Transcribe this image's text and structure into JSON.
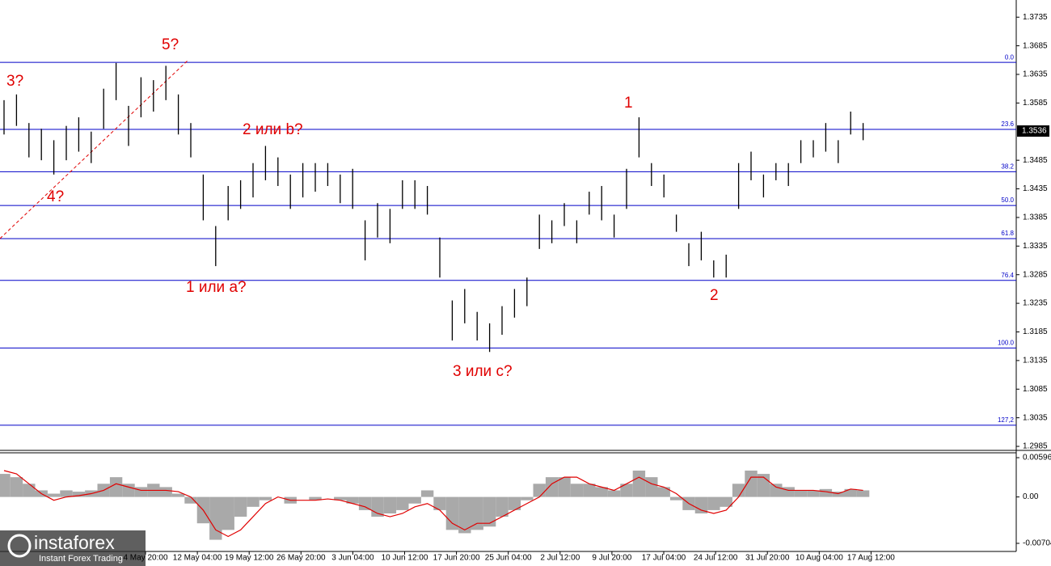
{
  "chart_data": [
    {
      "type": "hilo",
      "color": "#000000",
      "level_color": "#0000c8",
      "ylim": [
        1.2978,
        1.3765
      ],
      "yticks": [
        1.3735,
        1.3685,
        1.3635,
        1.3585,
        1.3485,
        1.3435,
        1.3385,
        1.3335,
        1.3285,
        1.3235,
        1.3185,
        1.3135,
        1.3085,
        1.3035,
        1.2985
      ],
      "current_price": 1.3536,
      "levels": [
        {
          "value": 1.3656,
          "label": "0.0"
        },
        {
          "value": 1.3539,
          "label": "23.6"
        },
        {
          "value": 1.3465,
          "label": "38.2"
        },
        {
          "value": 1.3406,
          "label": "50.0"
        },
        {
          "value": 1.3348,
          "label": "61.8"
        },
        {
          "value": 1.3275,
          "label": "76.4"
        },
        {
          "value": 1.3157,
          "label": "100.0"
        },
        {
          "value": 1.3022,
          "label": "127,2"
        }
      ],
      "high": [
        1.359,
        1.36,
        1.355,
        1.354,
        1.352,
        1.3545,
        1.356,
        1.3535,
        1.361,
        1.3655,
        1.358,
        1.363,
        1.3625,
        1.365,
        1.36,
        1.355,
        1.346,
        1.337,
        1.344,
        1.345,
        1.348,
        1.351,
        1.349,
        1.346,
        1.348,
        1.348,
        1.348,
        1.346,
        1.347,
        1.338,
        1.341,
        1.34,
        1.345,
        1.345,
        1.344,
        1.335,
        1.324,
        1.326,
        1.322,
        1.32,
        1.323,
        1.326,
        1.328,
        1.339,
        1.338,
        1.341,
        1.338,
        1.343,
        1.344,
        1.339,
        1.347,
        1.356,
        1.348,
        1.346,
        1.339,
        1.334,
        1.336,
        1.331,
        1.332,
        1.348,
        1.35,
        1.346,
        1.348,
        1.348,
        1.352,
        1.352,
        1.355,
        1.352,
        1.357,
        1.355
      ],
      "low": [
        1.353,
        1.3545,
        1.349,
        1.3485,
        1.346,
        1.3485,
        1.35,
        1.348,
        1.354,
        1.359,
        1.351,
        1.356,
        1.357,
        1.359,
        1.353,
        1.349,
        1.338,
        1.33,
        1.338,
        1.34,
        1.342,
        1.345,
        1.344,
        1.34,
        1.342,
        1.343,
        1.344,
        1.341,
        1.34,
        1.331,
        1.335,
        1.334,
        1.34,
        1.34,
        1.339,
        1.328,
        1.317,
        1.32,
        1.317,
        1.315,
        1.318,
        1.321,
        1.323,
        1.333,
        1.334,
        1.337,
        1.334,
        1.339,
        1.338,
        1.335,
        1.34,
        1.349,
        1.344,
        1.342,
        1.336,
        1.33,
        1.331,
        1.328,
        1.328,
        1.34,
        1.345,
        1.342,
        1.345,
        1.344,
        1.348,
        1.349,
        1.35,
        1.348,
        1.353,
        1.352
      ],
      "annotations": [
        "3?",
        "5?",
        "4?",
        "2 или b?",
        "1 или a?",
        "3 или c?",
        "1",
        "2"
      ],
      "x_labels": [
        "4 May 20:00",
        "12 May 04:00",
        "19 May 12:00",
        "26 May 20:00",
        "3 Jun 04:00",
        "10 Jun 12:00",
        "17 Jun 20:00",
        "25 Jun 04:00",
        "2 Jul 12:00",
        "9 Jul 20:00",
        "17 Jul 04:00",
        "24 Jul 12:00",
        "31 Jul 20:00",
        "10 Aug 04:00",
        "17 Aug 12:00"
      ]
    },
    {
      "type": "macd",
      "hist_color": "#a9a9a9",
      "signal_color": "#e00000",
      "ylim": [
        -0.00827,
        0.0067
      ],
      "yticks": [
        0.00596,
        {
          "value": 0,
          "label": "0.00"
        },
        -0.00704
      ],
      "histogram": [
        0.0035,
        0.003,
        0.002,
        0.001,
        0.0005,
        0.001,
        0.0008,
        0.001,
        0.002,
        0.003,
        0.002,
        0.0015,
        0.002,
        0.0015,
        0.0005,
        -0.001,
        -0.004,
        -0.0065,
        -0.005,
        -0.003,
        -0.0015,
        -0.0005,
        0,
        -0.001,
        0,
        -0.0005,
        0,
        -0.0005,
        -0.001,
        -0.002,
        -0.003,
        -0.0025,
        -0.002,
        -0.001,
        0.001,
        -0.002,
        -0.005,
        -0.0055,
        -0.005,
        -0.0045,
        -0.003,
        -0.002,
        -0.0005,
        0.002,
        0.003,
        0.003,
        0.002,
        0.002,
        0.0015,
        0.001,
        0.002,
        0.004,
        0.003,
        0.0015,
        -0.0005,
        -0.002,
        -0.0025,
        -0.002,
        -0.0015,
        0.002,
        0.004,
        0.0035,
        0.002,
        0.0015,
        0.001,
        0.001,
        0.0012,
        0.0008,
        0.0012,
        0.001
      ],
      "signal": [
        0.004,
        0.0035,
        0.002,
        0.0005,
        -0.0005,
        0,
        0.0002,
        0.0005,
        0.001,
        0.002,
        0.0015,
        0.001,
        0.001,
        0.001,
        0.0008,
        0,
        -0.002,
        -0.005,
        -0.006,
        -0.005,
        -0.003,
        -0.001,
        0,
        -0.0005,
        -0.0005,
        -0.0005,
        -0.0003,
        -0.0005,
        -0.001,
        -0.0015,
        -0.0025,
        -0.003,
        -0.0025,
        -0.0015,
        -0.001,
        -0.002,
        -0.004,
        -0.005,
        -0.004,
        -0.004,
        -0.003,
        -0.002,
        -0.001,
        0,
        0.002,
        0.003,
        0.003,
        0.002,
        0.0015,
        0.001,
        0.002,
        0.003,
        0.002,
        0.0015,
        0.0005,
        -0.001,
        -0.002,
        -0.0025,
        -0.002,
        0,
        0.003,
        0.003,
        0.0015,
        0.001,
        0.001,
        0.001,
        0.0008,
        0.0005,
        0.0012,
        0.001
      ]
    }
  ],
  "logo": {
    "name": "instaforex",
    "tagline": "Instant Forex Trading"
  }
}
